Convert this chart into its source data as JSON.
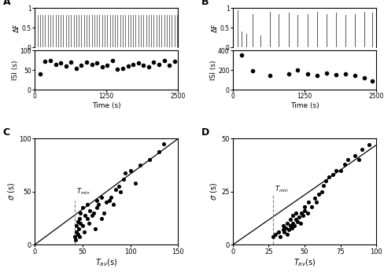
{
  "panel_A": {
    "spike_times": [
      50,
      95,
      140,
      185,
      230,
      275,
      320,
      365,
      410,
      455,
      500,
      545,
      590,
      635,
      680,
      725,
      770,
      815,
      860,
      905,
      950,
      995,
      1040,
      1085,
      1130,
      1175,
      1220,
      1265,
      1310,
      1355,
      1400,
      1445,
      1490,
      1535,
      1580,
      1625,
      1670,
      1715,
      1760,
      1805,
      1850,
      1895,
      1940,
      1985,
      2030,
      2075,
      2120,
      2165,
      2210,
      2255,
      2300,
      2345,
      2390,
      2435,
      2480
    ],
    "spike_height": 0.82,
    "isi_x": [
      95,
      185,
      275,
      365,
      455,
      545,
      635,
      725,
      815,
      905,
      995,
      1085,
      1175,
      1265,
      1355,
      1445,
      1535,
      1625,
      1715,
      1805,
      1895,
      1985,
      2075,
      2165,
      2255,
      2345,
      2435
    ],
    "isi_y": [
      40,
      72,
      75,
      65,
      68,
      60,
      70,
      55,
      62,
      70,
      65,
      68,
      58,
      62,
      75,
      52,
      55,
      60,
      65,
      68,
      62,
      58,
      70,
      65,
      75,
      62,
      72
    ],
    "isi_ylim": [
      0,
      100
    ],
    "df_ylim": [
      0,
      1
    ],
    "df_yticks": [
      0,
      0.5,
      1
    ],
    "xlim": [
      0,
      2500
    ],
    "xticks": [
      0,
      1250,
      2500
    ]
  },
  "panel_B": {
    "spike_times": [
      80,
      150,
      230,
      340,
      480,
      650,
      800,
      970,
      1130,
      1300,
      1470,
      1630,
      1800,
      1960,
      2130,
      2290,
      2430
    ],
    "spike_heights": [
      0.95,
      0.4,
      0.35,
      0.85,
      0.3,
      0.9,
      0.85,
      0.88,
      0.82,
      0.85,
      0.9,
      0.85,
      0.88,
      0.82,
      0.85,
      0.9,
      0.88
    ],
    "isi_x": [
      150,
      340,
      650,
      970,
      1130,
      1300,
      1470,
      1630,
      1800,
      1960,
      2130,
      2290,
      2430
    ],
    "isi_y": [
      355,
      195,
      150,
      160,
      200,
      160,
      150,
      170,
      155,
      165,
      150,
      120,
      90
    ],
    "isi_ylim": [
      0,
      400
    ],
    "isi_yticks": [
      0,
      200,
      400
    ],
    "df_ylim": [
      0,
      1
    ],
    "df_yticks": [
      0,
      0.5,
      1
    ],
    "xlim": [
      0,
      2500
    ],
    "xticks": [
      0,
      1250,
      2500
    ]
  },
  "panel_C": {
    "tav": [
      42,
      43,
      44,
      44,
      45,
      45,
      46,
      47,
      47,
      48,
      48,
      50,
      50,
      52,
      53,
      55,
      55,
      57,
      58,
      60,
      62,
      63,
      65,
      65,
      67,
      70,
      70,
      72,
      75,
      78,
      80,
      82,
      85,
      88,
      90,
      93,
      95,
      100,
      105,
      110,
      120,
      130,
      135
    ],
    "sigma": [
      8,
      5,
      12,
      18,
      10,
      22,
      15,
      25,
      8,
      20,
      30,
      18,
      35,
      12,
      28,
      25,
      38,
      20,
      32,
      28,
      30,
      15,
      35,
      42,
      38,
      25,
      45,
      30,
      40,
      42,
      45,
      38,
      52,
      55,
      50,
      62,
      68,
      70,
      58,
      75,
      80,
      88,
      95
    ],
    "tmin": 42,
    "line_x": [
      0,
      150
    ],
    "line_y": [
      0,
      100
    ],
    "xlim": [
      0,
      150
    ],
    "ylim": [
      0,
      100
    ],
    "xticks": [
      0,
      50,
      100,
      150
    ],
    "yticks": [
      0,
      50,
      100
    ]
  },
  "panel_D": {
    "tav": [
      28,
      30,
      32,
      33,
      35,
      35,
      36,
      37,
      38,
      38,
      39,
      40,
      40,
      41,
      42,
      42,
      43,
      44,
      44,
      45,
      46,
      47,
      48,
      49,
      50,
      50,
      52,
      53,
      55,
      57,
      58,
      60,
      62,
      63,
      65,
      67,
      70,
      72,
      75,
      78,
      80,
      85,
      88,
      90,
      95
    ],
    "sigma": [
      4,
      5,
      6,
      4,
      7,
      9,
      6,
      8,
      5,
      10,
      7,
      9,
      12,
      8,
      10,
      14,
      9,
      12,
      15,
      11,
      13,
      10,
      15,
      14,
      16,
      18,
      15,
      20,
      18,
      22,
      20,
      24,
      25,
      28,
      30,
      32,
      33,
      35,
      35,
      38,
      40,
      42,
      40,
      45,
      47
    ],
    "tmin": 28,
    "line_x": [
      0,
      100
    ],
    "line_y": [
      0,
      47
    ],
    "xlim": [
      0,
      100
    ],
    "ylim": [
      0,
      50
    ],
    "xticks": [
      0,
      25,
      50,
      75,
      100
    ],
    "yticks": [
      0,
      25,
      50
    ]
  }
}
